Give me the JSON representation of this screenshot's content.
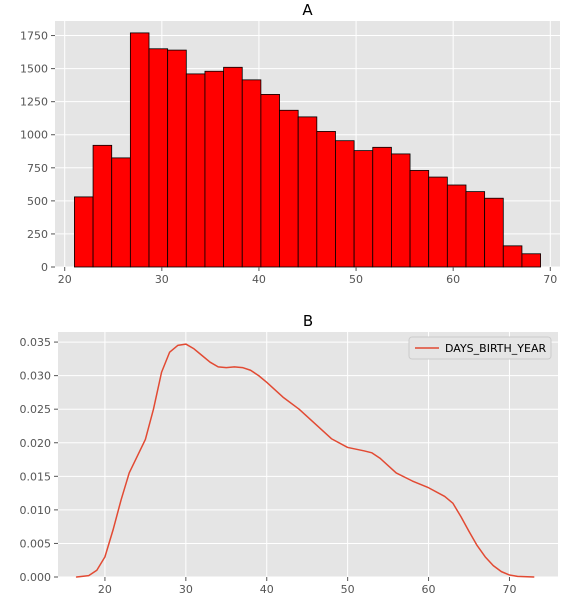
{
  "chart_data": [
    {
      "id": "A",
      "type": "bar",
      "subtype": "histogram",
      "title": "A",
      "xlabel": "",
      "ylabel": "",
      "bar_color": "#ff0000",
      "edge_color": "#000000",
      "bin_edges": [
        21.0,
        22.92,
        24.84,
        26.76,
        28.68,
        30.6,
        32.52,
        34.44,
        36.36,
        38.28,
        40.2,
        42.12,
        44.04,
        45.96,
        47.88,
        49.8,
        51.72,
        53.64,
        55.56,
        57.48,
        59.4,
        61.32,
        63.24,
        65.16,
        67.08,
        69.0
      ],
      "values": [
        530,
        920,
        825,
        1770,
        1650,
        1640,
        1460,
        1480,
        1510,
        1415,
        1305,
        1185,
        1135,
        1025,
        955,
        880,
        905,
        855,
        730,
        680,
        620,
        570,
        520,
        160,
        100
      ],
      "xlim": [
        19,
        71
      ],
      "ylim": [
        0,
        1860
      ],
      "xticks": [
        20,
        30,
        40,
        50,
        60,
        70
      ],
      "xtick_labels": [
        "20",
        "30",
        "40",
        "50",
        "60",
        "70"
      ],
      "yticks": [
        0,
        250,
        500,
        750,
        1000,
        1250,
        1500,
        1750
      ],
      "ytick_labels": [
        "0",
        "250",
        "500",
        "750",
        "1000",
        "1250",
        "1500",
        "1750"
      ],
      "grid": true,
      "legend": null
    },
    {
      "id": "B",
      "type": "line",
      "subtype": "kde",
      "title": "B",
      "xlabel": "",
      "ylabel": "",
      "series": [
        {
          "name": "DAYS_BIRTH_YEAR",
          "color": "#e24a33",
          "x": [
            16.5,
            18,
            19,
            20,
            21,
            22,
            23,
            24,
            25,
            26,
            27,
            28,
            29,
            30,
            31,
            32,
            33,
            34,
            35,
            36,
            37,
            38,
            39,
            40,
            42,
            44,
            46,
            48,
            50,
            52,
            53,
            54,
            56,
            58,
            60,
            62,
            63,
            64,
            65,
            66,
            67,
            68,
            69,
            70,
            71,
            73
          ],
          "y": [
            0.0,
            0.0002,
            0.001,
            0.003,
            0.007,
            0.0115,
            0.0155,
            0.018,
            0.0205,
            0.025,
            0.0305,
            0.0335,
            0.0345,
            0.0347,
            0.034,
            0.033,
            0.032,
            0.0313,
            0.0312,
            0.0313,
            0.0312,
            0.0308,
            0.03,
            0.029,
            0.0268,
            0.025,
            0.0228,
            0.0206,
            0.0193,
            0.0188,
            0.0185,
            0.0177,
            0.0155,
            0.0143,
            0.0133,
            0.012,
            0.011,
            0.009,
            0.0068,
            0.0047,
            0.003,
            0.0017,
            0.0008,
            0.0003,
            0.0001,
            0.0
          ]
        }
      ],
      "xlim": [
        14.2,
        76.0
      ],
      "ylim": [
        0,
        0.0365
      ],
      "xticks": [
        20,
        30,
        40,
        50,
        60,
        70
      ],
      "xtick_labels": [
        "20",
        "30",
        "40",
        "50",
        "60",
        "70"
      ],
      "yticks": [
        0,
        0.005,
        0.01,
        0.015,
        0.02,
        0.025,
        0.03,
        0.035
      ],
      "ytick_labels": [
        "0.000",
        "0.005",
        "0.010",
        "0.015",
        "0.020",
        "0.025",
        "0.030",
        "0.035"
      ],
      "grid": true,
      "legend": "top-right"
    }
  ]
}
